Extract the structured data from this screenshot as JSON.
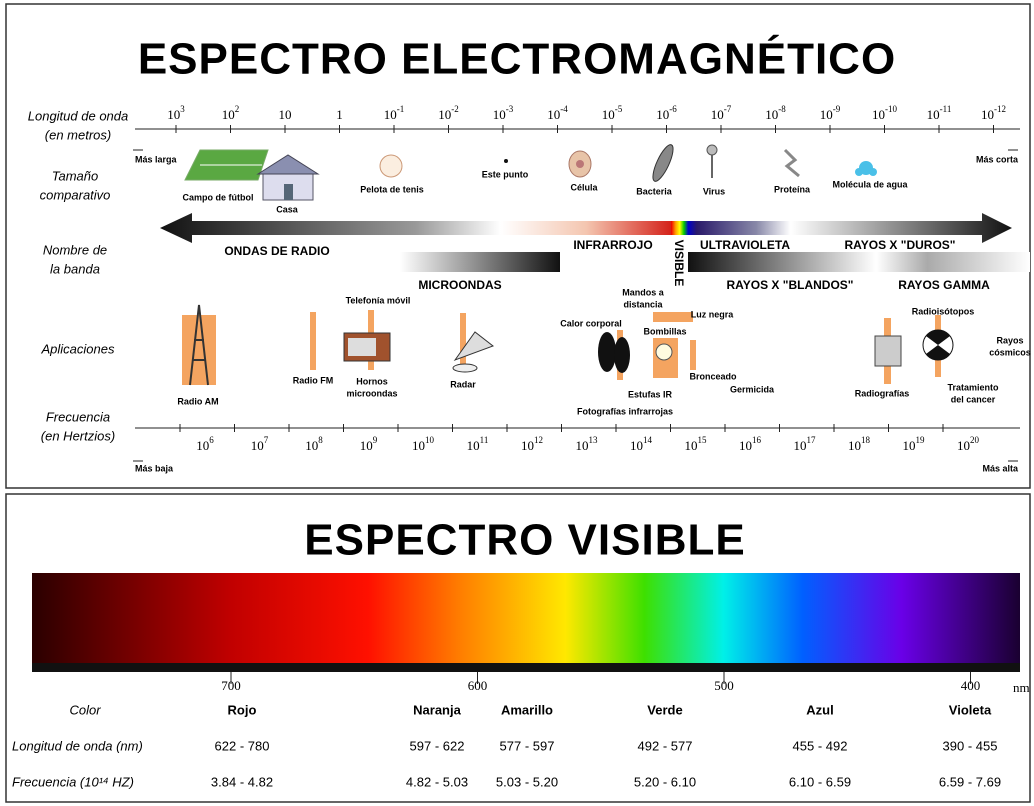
{
  "electromagnetic": {
    "title": "ESPECTRO ELECTROMAGNÉTICO",
    "row_labels": {
      "wavelength": [
        "Longitud de onda",
        "(en metros)"
      ],
      "size": [
        "Tamaño",
        "comparativo"
      ],
      "band": [
        "Nombre de",
        "la banda"
      ],
      "applications": [
        "Aplicaciones"
      ],
      "frequency": [
        "Frecuencia",
        "(en Hertzios)"
      ]
    },
    "wavelength_ticks": [
      {
        "base": "10",
        "exp": "3"
      },
      {
        "base": "10",
        "exp": "2"
      },
      {
        "base": "10"
      },
      {
        "base": "1"
      },
      {
        "base": "10",
        "exp": "-1"
      },
      {
        "base": "10",
        "exp": "-2"
      },
      {
        "base": "10",
        "exp": "-3"
      },
      {
        "base": "10",
        "exp": "-4"
      },
      {
        "base": "10",
        "exp": "-5"
      },
      {
        "base": "10",
        "exp": "-6"
      },
      {
        "base": "10",
        "exp": "-7"
      },
      {
        "base": "10",
        "exp": "-8"
      },
      {
        "base": "10",
        "exp": "-9"
      },
      {
        "base": "10",
        "exp": "-10"
      },
      {
        "base": "10",
        "exp": "-11"
      },
      {
        "base": "10",
        "exp": "-12"
      }
    ],
    "wavelength_ends": [
      "Más larga",
      "Más corta"
    ],
    "sizes": [
      "Campo de fútbol",
      "Casa",
      "Pelota de tenis",
      "Este punto",
      "Célula",
      "Bacteria",
      "Virus",
      "Proteína",
      "Molécula de agua"
    ],
    "bands": [
      "ONDAS DE RADIO",
      "MICROONDAS",
      "INFRARROJO",
      "VISIBLE",
      "ULTRAVIOLETA",
      "RAYOS X \"DUROS\"",
      "RAYOS X \"BLANDOS\"",
      "RAYOS GAMMA"
    ],
    "applications": [
      [
        "Radio AM"
      ],
      [
        "Radio FM"
      ],
      [
        "Telefonía móvil"
      ],
      [
        "Hornos",
        "microondas"
      ],
      [
        "Radar"
      ],
      [
        "Calor corporal"
      ],
      [
        "Mandos a",
        "distancia"
      ],
      [
        "Luz negra"
      ],
      [
        "Bombillas"
      ],
      [
        "Bronceado"
      ],
      [
        "Estufas IR"
      ],
      [
        "Germicida"
      ],
      [
        "Fotografías infrarrojas"
      ],
      [
        "Radiografías"
      ],
      [
        "Radioisótopos"
      ],
      [
        "Rayos",
        "cósmicos"
      ],
      [
        "Tratamiento",
        "del cancer"
      ]
    ],
    "frequency_ticks": [
      {
        "base": "10",
        "exp": "6"
      },
      {
        "base": "10",
        "exp": "7"
      },
      {
        "base": "10",
        "exp": "8"
      },
      {
        "base": "10",
        "exp": "9"
      },
      {
        "base": "10",
        "exp": "10"
      },
      {
        "base": "10",
        "exp": "11"
      },
      {
        "base": "10",
        "exp": "12"
      },
      {
        "base": "10",
        "exp": "13"
      },
      {
        "base": "10",
        "exp": "14"
      },
      {
        "base": "10",
        "exp": "15"
      },
      {
        "base": "10",
        "exp": "16"
      },
      {
        "base": "10",
        "exp": "17"
      },
      {
        "base": "10",
        "exp": "18"
      },
      {
        "base": "10",
        "exp": "19"
      },
      {
        "base": "10",
        "exp": "20"
      }
    ],
    "frequency_ends": [
      "Más baja",
      "Más alta"
    ]
  },
  "visible": {
    "title": "ESPECTRO VISIBLE",
    "scale": [
      700,
      600,
      500,
      400
    ],
    "scale_unit": "nm",
    "table": {
      "header": [
        "Color",
        "Rojo",
        "Naranja",
        "Amarillo",
        "Verde",
        "Azul",
        "Violeta"
      ],
      "rows": [
        [
          "Longitud de onda (nm)",
          "622 - 780",
          "597 - 622",
          "577 - 597",
          "492 - 577",
          "455 - 492",
          "390 - 455"
        ],
        [
          "Frecuencia (10¹⁴ HZ)",
          "3.84 - 4.82",
          "4.82 - 5.03",
          "5.03 - 5.20",
          "5.20 - 6.10",
          "6.10 - 6.59",
          "6.59 - 7.69"
        ]
      ]
    }
  }
}
